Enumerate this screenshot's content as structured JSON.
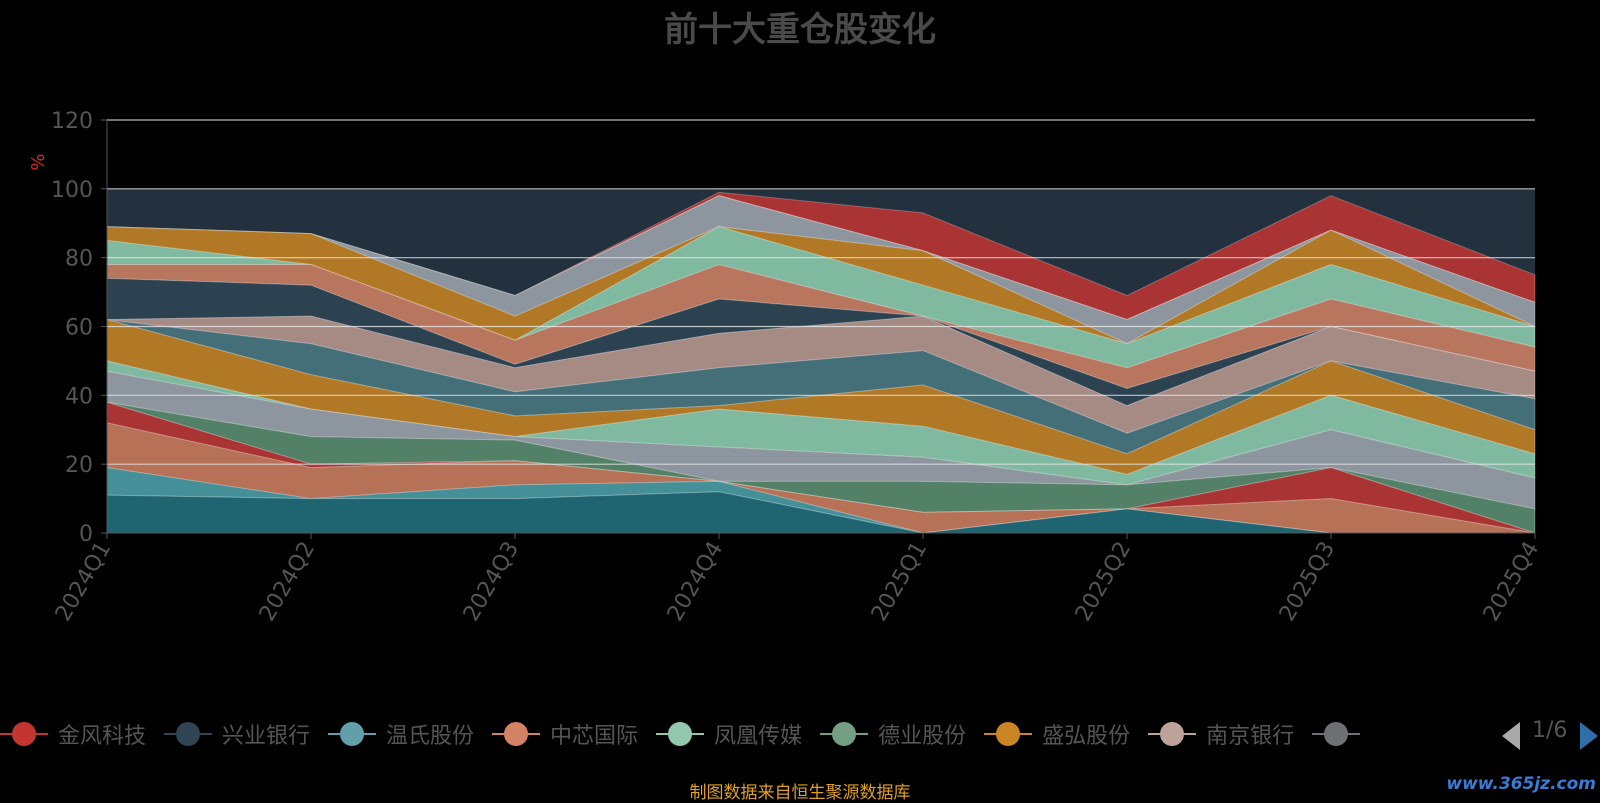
{
  "title": "前十大重仓股变化",
  "footnote": "制图数据来自恒生聚源数据库",
  "watermark": "www.365jz.com",
  "pager": {
    "text": "1/6"
  },
  "chart_data": {
    "type": "area",
    "ylabel": "%",
    "ylim": [
      0,
      120
    ],
    "yticks": [
      "0",
      "20",
      "40",
      "60",
      "80",
      "100",
      "120"
    ],
    "categories": [
      "2024Q1",
      "2024Q2",
      "2024Q3",
      "2024Q4",
      "2025Q1",
      "2025Q2",
      "2025Q3",
      "2025Q4"
    ],
    "legend_visible": [
      {
        "name": "金风科技",
        "color": "#c23531"
      },
      {
        "name": "兴业银行",
        "color": "#2f4554"
      },
      {
        "name": "温氏股份",
        "color": "#61a0a8"
      },
      {
        "name": "中芯国际",
        "color": "#d48265"
      },
      {
        "name": "凤凰传媒",
        "color": "#91c7ae"
      },
      {
        "name": "德业股份",
        "color": "#749f83"
      },
      {
        "name": "盛弘股份",
        "color": "#ca8622"
      },
      {
        "name": "南京银行",
        "color": "#bda29a"
      },
      {
        "name": "",
        "color": "#6e7074"
      }
    ],
    "bands": [
      {
        "color": "#1f6f7a",
        "values": [
          11,
          10,
          10,
          12,
          0,
          7,
          0,
          0
        ]
      },
      {
        "color": "#4aa0a8",
        "values": [
          19,
          10,
          14,
          15,
          0,
          7,
          0,
          0
        ]
      },
      {
        "color": "#d07c5a",
        "values": [
          32,
          19,
          21,
          15,
          6,
          7,
          10,
          0
        ]
      },
      {
        "color": "#c23531",
        "values": [
          38,
          20,
          21,
          15,
          6,
          7,
          19,
          0
        ]
      },
      {
        "color": "#5b8f6e",
        "values": [
          38,
          28,
          27,
          15,
          15,
          14,
          19,
          7
        ]
      },
      {
        "color": "#a0a8b0",
        "values": [
          47,
          36,
          28,
          25,
          22,
          14,
          30,
          16
        ]
      },
      {
        "color": "#8fd2b2",
        "values": [
          50,
          36,
          28,
          36,
          31,
          17,
          40,
          23
        ]
      },
      {
        "color": "#ca8622",
        "values": [
          62,
          46,
          34,
          37,
          43,
          23,
          50,
          30
        ]
      },
      {
        "color": "#4a7a82",
        "values": [
          62,
          55,
          41,
          48,
          53,
          29,
          50,
          39
        ]
      },
      {
        "color": "#bd9a90",
        "values": [
          62,
          63,
          48,
          58,
          63,
          37,
          60,
          47
        ]
      },
      {
        "color": "#2f4554",
        "values": [
          74,
          72,
          49,
          68,
          63,
          42,
          60,
          47
        ]
      },
      {
        "color": "#d48265",
        "values": [
          78,
          78,
          56,
          78,
          63,
          48,
          68,
          54
        ]
      },
      {
        "color": "#8fd2b2",
        "values": [
          85,
          78,
          56,
          89,
          72,
          55,
          78,
          60
        ]
      },
      {
        "color": "#ca8622",
        "values": [
          89,
          87,
          63,
          89,
          82,
          55,
          88,
          60
        ]
      },
      {
        "color": "#a0a8b0",
        "values": [
          89,
          87,
          69,
          98,
          82,
          62,
          88,
          67
        ]
      },
      {
        "color": "#555a60",
        "values": [
          89,
          87,
          69,
          98,
          82,
          62,
          88,
          67
        ]
      },
      {
        "color": "#c23531",
        "values": [
          89,
          87,
          69,
          99,
          93,
          69,
          98,
          75
        ]
      }
    ]
  }
}
